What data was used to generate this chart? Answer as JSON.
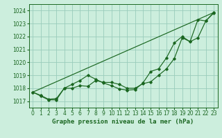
{
  "title": "Graphe pression niveau de la mer (hPa)",
  "background_color": "#cceedd",
  "grid_color": "#99ccbb",
  "line_color": "#1a6620",
  "xlim": [
    -0.5,
    23.5
  ],
  "ylim": [
    1016.5,
    1024.5
  ],
  "yticks": [
    1017,
    1018,
    1019,
    1020,
    1021,
    1022,
    1023,
    1024
  ],
  "xticks": [
    0,
    1,
    2,
    3,
    4,
    5,
    6,
    7,
    8,
    9,
    10,
    11,
    12,
    13,
    14,
    15,
    16,
    17,
    18,
    19,
    20,
    21,
    22,
    23
  ],
  "series1_x": [
    0,
    1,
    2,
    3,
    4,
    5,
    6,
    7,
    8,
    9,
    10,
    11,
    12,
    13,
    14,
    15,
    16,
    17,
    18,
    19,
    20,
    21,
    22,
    23
  ],
  "series1_y": [
    1017.7,
    1017.45,
    1017.15,
    1017.2,
    1018.0,
    1018.0,
    1018.2,
    1018.15,
    1018.6,
    1018.45,
    1018.45,
    1018.3,
    1018.0,
    1018.0,
    1018.35,
    1018.5,
    1019.0,
    1019.5,
    1020.3,
    1021.9,
    1021.6,
    1021.9,
    1023.2,
    1023.8
  ],
  "series2_x": [
    0,
    1,
    2,
    3,
    4,
    5,
    6,
    7,
    8,
    9,
    10,
    11,
    12,
    13,
    14,
    15,
    16,
    17,
    18,
    19,
    20,
    21,
    22,
    23
  ],
  "series2_y": [
    1017.7,
    1017.4,
    1017.1,
    1017.1,
    1018.0,
    1018.3,
    1018.6,
    1019.0,
    1018.7,
    1018.4,
    1018.2,
    1017.95,
    1017.85,
    1017.9,
    1018.4,
    1019.3,
    1019.5,
    1020.35,
    1021.5,
    1022.0,
    1021.6,
    1023.3,
    1023.2,
    1023.85
  ],
  "series3_x": [
    0,
    23
  ],
  "series3_y": [
    1017.7,
    1023.85
  ],
  "xlabel_fontsize": 6.5,
  "tick_fontsize": 5.5
}
